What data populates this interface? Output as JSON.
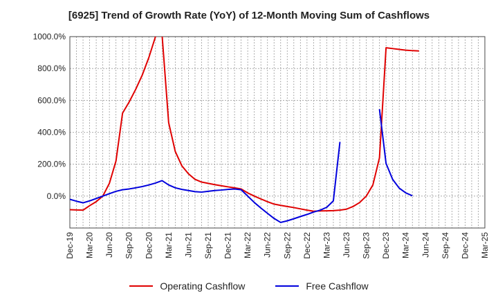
{
  "chart_data": {
    "type": "line",
    "title": "[6925]  Trend of Growth Rate (YoY) of 12-Month Moving Sum of Cashflows",
    "xlabel": "",
    "ylabel": "",
    "ylim": [
      -200,
      1000
    ],
    "yticks": [
      0,
      200,
      400,
      600,
      800,
      1000
    ],
    "ytick_labels": [
      "0.0%",
      "200.0%",
      "400.0%",
      "600.0%",
      "800.0%",
      "1000.0%"
    ],
    "x_tick_labels": [
      "Dec-19",
      "Mar-20",
      "Jun-20",
      "Sep-20",
      "Dec-20",
      "Mar-21",
      "Jun-21",
      "Sep-21",
      "Dec-21",
      "Mar-22",
      "Jun-22",
      "Sep-22",
      "Dec-22",
      "Mar-23",
      "Jun-23",
      "Sep-23",
      "Dec-23",
      "Mar-24",
      "Jun-24",
      "Sep-24",
      "Dec-24",
      "Mar-25"
    ],
    "grid": true,
    "legend_position": "bottom",
    "series": [
      {
        "name": "Operating Cashflow",
        "color": "#e00000",
        "points": [
          [
            0,
            -85
          ],
          [
            1,
            -87
          ],
          [
            2,
            -88
          ],
          [
            3,
            -60
          ],
          [
            4,
            -35
          ],
          [
            5,
            0
          ],
          [
            6,
            80
          ],
          [
            7,
            220
          ],
          [
            8,
            520
          ],
          [
            9,
            590
          ],
          [
            10,
            670
          ],
          [
            11,
            760
          ],
          [
            12,
            870
          ],
          [
            13,
            1000
          ],
          [
            13.5,
            1080
          ],
          [
            14,
            1010
          ],
          [
            15,
            460
          ],
          [
            16,
            280
          ],
          [
            17,
            190
          ],
          [
            18,
            140
          ],
          [
            19,
            105
          ],
          [
            20,
            88
          ],
          [
            21,
            80
          ],
          [
            22,
            72
          ],
          [
            23,
            65
          ],
          [
            24,
            58
          ],
          [
            25,
            52
          ],
          [
            26,
            45
          ],
          [
            27,
            20
          ],
          [
            28,
            0
          ],
          [
            29,
            -18
          ],
          [
            30,
            -35
          ],
          [
            31,
            -50
          ],
          [
            32,
            -58
          ],
          [
            33,
            -65
          ],
          [
            34,
            -72
          ],
          [
            35,
            -80
          ],
          [
            36,
            -88
          ],
          [
            37,
            -95
          ],
          [
            38,
            -93
          ],
          [
            39,
            -92
          ],
          [
            40,
            -91
          ],
          [
            41,
            -88
          ],
          [
            42,
            -82
          ],
          [
            43,
            -65
          ],
          [
            44,
            -40
          ],
          [
            45,
            0
          ],
          [
            46,
            70
          ],
          [
            47,
            240
          ],
          [
            48,
            930
          ],
          [
            49,
            925
          ],
          [
            50,
            920
          ],
          [
            51,
            915
          ],
          [
            52,
            912
          ],
          [
            53,
            910
          ]
        ]
      },
      {
        "name": "Free Cashflow",
        "color": "#0000dd",
        "points": [
          [
            0,
            -20
          ],
          [
            1,
            -32
          ],
          [
            2,
            -42
          ],
          [
            3,
            -30
          ],
          [
            4,
            -15
          ],
          [
            5,
            0
          ],
          [
            6,
            15
          ],
          [
            7,
            30
          ],
          [
            8,
            40
          ],
          [
            9,
            45
          ],
          [
            10,
            52
          ],
          [
            11,
            60
          ],
          [
            12,
            70
          ],
          [
            13,
            82
          ],
          [
            14,
            97
          ],
          [
            15,
            70
          ],
          [
            16,
            52
          ],
          [
            17,
            42
          ],
          [
            18,
            35
          ],
          [
            19,
            28
          ],
          [
            20,
            25
          ],
          [
            21,
            30
          ],
          [
            22,
            35
          ],
          [
            23,
            38
          ],
          [
            24,
            42
          ],
          [
            25,
            45
          ],
          [
            26,
            40
          ],
          [
            27,
            0
          ],
          [
            28,
            -40
          ],
          [
            29,
            -75
          ],
          [
            30,
            -108
          ],
          [
            31,
            -140
          ],
          [
            32,
            -165
          ],
          [
            33,
            -155
          ],
          [
            34,
            -142
          ],
          [
            35,
            -128
          ],
          [
            36,
            -115
          ],
          [
            37,
            -100
          ],
          [
            38,
            -88
          ],
          [
            39,
            -70
          ],
          [
            40,
            -30
          ],
          [
            41,
            340
          ],
          [
            46.5,
            null
          ],
          [
            47,
            545
          ],
          [
            48,
            205
          ],
          [
            49,
            105
          ],
          [
            50,
            50
          ],
          [
            51,
            20
          ],
          [
            52,
            2
          ]
        ]
      }
    ]
  }
}
